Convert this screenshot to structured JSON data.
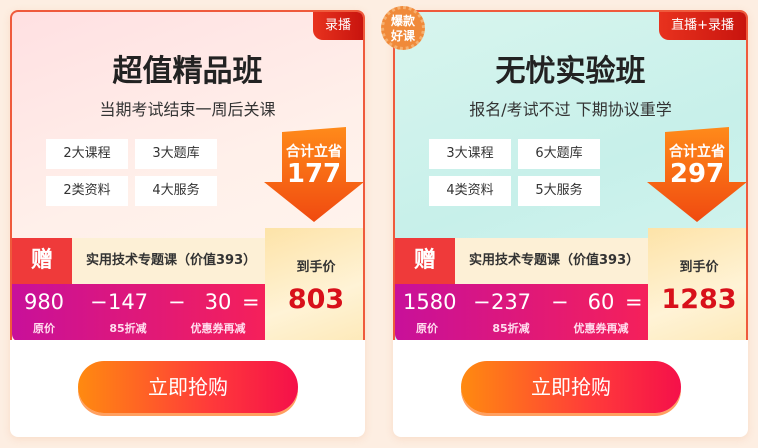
{
  "cards": [
    {
      "tag": "录播",
      "title": "超值精品班",
      "subtitle": "当期考试结束一周后关课",
      "chips": [
        "2大课程",
        "3大题库",
        "2类资料",
        "4大服务"
      ],
      "savings_label": "合计立省",
      "savings": "177",
      "gift_icon": "赠",
      "gift_text": "实用技术专题课（价值393）",
      "calc": [
        {
          "value": "980",
          "label": "原价"
        },
        {
          "value": "147",
          "label": "85折减"
        },
        {
          "value": "30",
          "label": "优惠券再减"
        }
      ],
      "final_label": "到手价",
      "final_price": "803",
      "buy": "立即抢购"
    },
    {
      "tag": "直播+录播",
      "badge": "爆款好课",
      "title": "无忧实验班",
      "subtitle": "报名/考试不过 下期协议重学",
      "chips": [
        "3大课程",
        "6大题库",
        "4类资料",
        "5大服务"
      ],
      "savings_label": "合计立省",
      "savings": "297",
      "gift_icon": "赠",
      "gift_text": "实用技术专题课（价值393）",
      "calc": [
        {
          "value": "1580",
          "label": "原价"
        },
        {
          "value": "237",
          "label": "85折减"
        },
        {
          "value": "60",
          "label": "优惠券再减"
        }
      ],
      "final_label": "到手价",
      "final_price": "1283",
      "buy": "立即抢购"
    }
  ],
  "ops": {
    "minus": "−",
    "equals": "="
  },
  "colors": {
    "accent": "#ef5a3c",
    "price": "#d8101a"
  }
}
